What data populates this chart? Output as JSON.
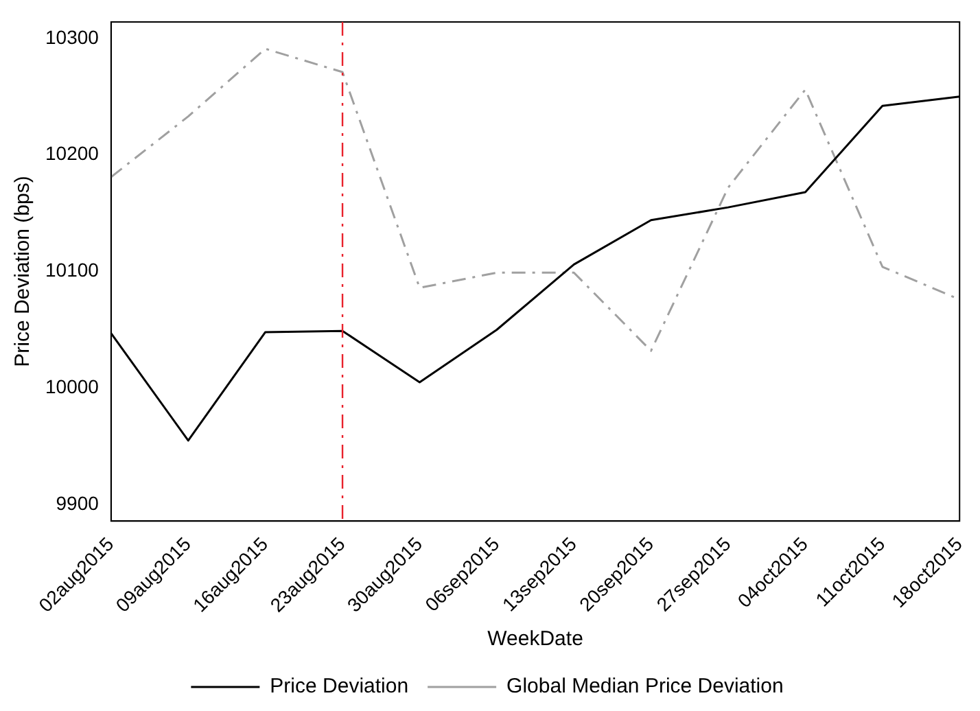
{
  "chart_data": {
    "type": "line",
    "xlabel": "WeekDate",
    "ylabel": "Price Deviation (bps)",
    "categories": [
      "02aug2015",
      "09aug2015",
      "16aug2015",
      "23aug2015",
      "30aug2015",
      "06sep2015",
      "13sep2015",
      "20sep2015",
      "27sep2015",
      "04oct2015",
      "11oct2015",
      "18oct2015"
    ],
    "series": [
      {
        "name": "Price Deviation",
        "color": "#000000",
        "line_style": "solid",
        "values": [
          10047,
          9955,
          10048,
          10049,
          10005,
          10050,
          10106,
          10144,
          10155,
          10168,
          10242,
          10250
        ]
      },
      {
        "name": "Global Median Price Deviation",
        "color": "#a0a0a0",
        "line_style": "dashed",
        "values": [
          10181,
          10233,
          10291,
          10271,
          10086,
          10099,
          10099,
          10032,
          10172,
          10256,
          10104,
          10076
        ]
      }
    ],
    "ylim": [
      9886,
      10314
    ],
    "yticks": [
      9900,
      10000,
      10100,
      10200,
      10300
    ],
    "ref_lines": [
      {
        "axis": "x",
        "value": "23aug2015",
        "color": "#e8222c",
        "line_style": "dashed"
      }
    ],
    "grid": false,
    "legend": "bottom",
    "marker": "none"
  }
}
